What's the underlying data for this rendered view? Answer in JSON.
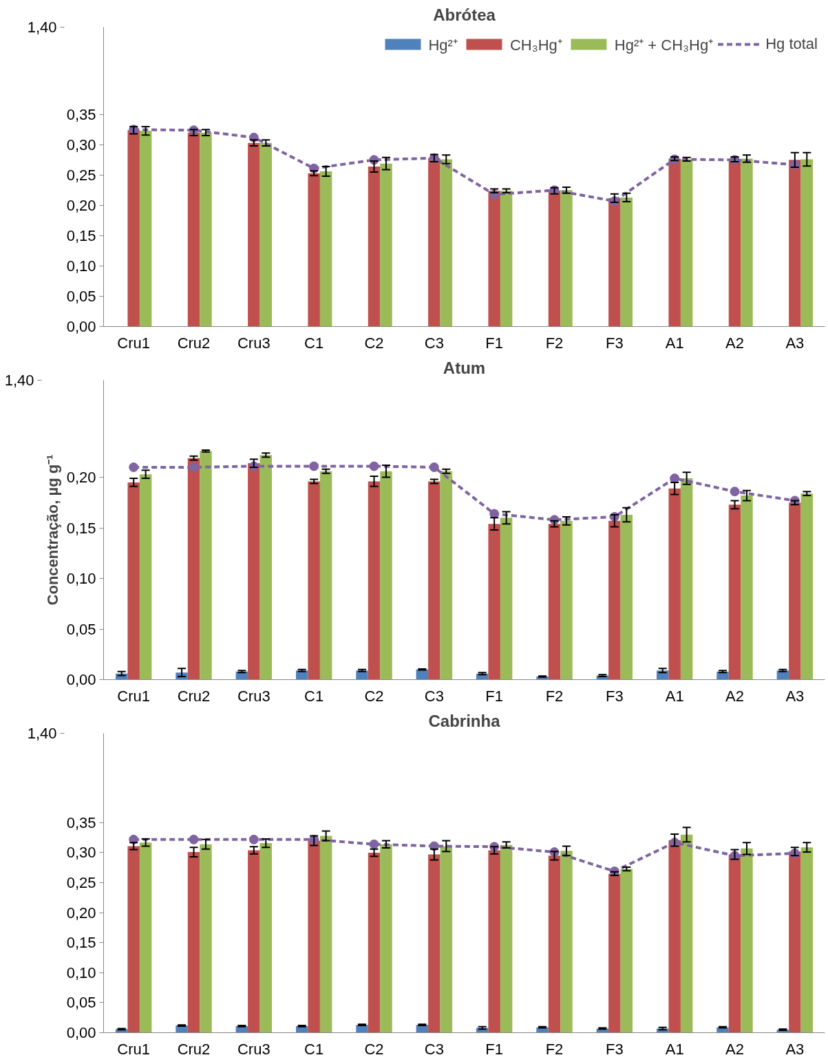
{
  "chart_data": [
    {
      "type": "bar",
      "title": "Abrótea",
      "categories": [
        "Cru1",
        "Cru2",
        "Cru3",
        "C1",
        "C2",
        "C3",
        "F1",
        "F2",
        "F3",
        "A1",
        "A2",
        "A3"
      ],
      "ylim": [
        0,
        0.494
      ],
      "yticks": [
        {
          "value": 0,
          "label": "0,00"
        },
        {
          "value": 0.05,
          "label": "0,05"
        },
        {
          "value": 0.1,
          "label": "0,10"
        },
        {
          "value": 0.15,
          "label": "0,15"
        },
        {
          "value": 0.2,
          "label": "0,20"
        },
        {
          "value": 0.25,
          "label": "0,25"
        },
        {
          "value": 0.3,
          "label": "0,30"
        },
        {
          "value": 0.35,
          "label": "0,35"
        }
      ],
      "annotations": [
        "1,40"
      ],
      "legend": "top right",
      "grid": false,
      "marker": "circle",
      "line_style": "dashed",
      "series": [
        {
          "name": "Hg²⁺",
          "color": "#4f81bd",
          "values": [
            0,
            0,
            0,
            0,
            0,
            0,
            0,
            0,
            0,
            0,
            0,
            0
          ]
        },
        {
          "name": "CH₃Hg⁺",
          "color": "#c0504d",
          "values": [
            0.324,
            0.32,
            0.303,
            0.253,
            0.264,
            0.278,
            0.224,
            0.224,
            0.212,
            0.277,
            0.276,
            0.275
          ],
          "errors": [
            0.006,
            0.005,
            0.005,
            0.004,
            0.009,
            0.006,
            0.003,
            0.005,
            0.007,
            0.003,
            0.004,
            0.012
          ]
        },
        {
          "name": "Hg²⁺ + CH₃Hg⁺",
          "color": "#9bbb59",
          "values": [
            0.323,
            0.32,
            0.303,
            0.256,
            0.269,
            0.276,
            0.224,
            0.225,
            0.213,
            0.276,
            0.277,
            0.276
          ],
          "errors": [
            0.007,
            0.005,
            0.005,
            0.008,
            0.01,
            0.007,
            0.003,
            0.005,
            0.007,
            0.003,
            0.006,
            0.011
          ]
        },
        {
          "name": "Hg total",
          "type": "line",
          "color": "#8064a2",
          "values": [
            0.325,
            0.324,
            0.312,
            0.261,
            0.275,
            0.278,
            0.218,
            0.225,
            0.207,
            0.276,
            0.275,
            0.267
          ]
        }
      ]
    },
    {
      "type": "bar",
      "title": "Atum",
      "ylabel": "Concentração, µg g⁻¹",
      "categories": [
        "Cru1",
        "Cru2",
        "Cru3",
        "C1",
        "C2",
        "C3",
        "F1",
        "F2",
        "F3",
        "A1",
        "A2",
        "A3"
      ],
      "ylim": [
        0,
        0.296
      ],
      "yticks": [
        {
          "value": 0,
          "label": "0,00"
        },
        {
          "value": 0.05,
          "label": "0,05"
        },
        {
          "value": 0.1,
          "label": "0,10"
        },
        {
          "value": 0.15,
          "label": "0,15"
        },
        {
          "value": 0.2,
          "label": "0,20"
        }
      ],
      "annotations": [
        "1,40"
      ],
      "legend": false,
      "grid": false,
      "marker": "circle",
      "line_style": "dashed",
      "series": [
        {
          "color": "#4f81bd",
          "values": [
            0.006,
            0.007,
            0.008,
            0.009,
            0.009,
            0.01,
            0.006,
            0.003,
            0.004,
            0.009,
            0.008,
            0.009
          ],
          "errors": [
            0.002,
            0.004,
            0.001,
            0.001,
            0.001,
            0.0005,
            0.001,
            0.0005,
            0.001,
            0.002,
            0.001,
            0.001
          ]
        },
        {
          "color": "#c0504d",
          "values": [
            0.195,
            0.219,
            0.214,
            0.196,
            0.196,
            0.196,
            0.154,
            0.154,
            0.157,
            0.189,
            0.173,
            0.175
          ],
          "errors": [
            0.004,
            0.002,
            0.004,
            0.002,
            0.005,
            0.002,
            0.006,
            0.003,
            0.006,
            0.006,
            0.004,
            0.002
          ]
        },
        {
          "color": "#9bbb59",
          "values": [
            0.203,
            0.226,
            0.222,
            0.206,
            0.206,
            0.206,
            0.16,
            0.157,
            0.163,
            0.199,
            0.182,
            0.184
          ],
          "errors": [
            0.004,
            0.001,
            0.002,
            0.002,
            0.006,
            0.002,
            0.006,
            0.004,
            0.007,
            0.006,
            0.005,
            0.002
          ]
        },
        {
          "type": "line",
          "color": "#8064a2",
          "values": [
            0.21,
            0.21,
            0.211,
            0.211,
            0.211,
            0.21,
            0.164,
            0.158,
            0.161,
            0.199,
            0.186,
            0.177
          ]
        }
      ]
    },
    {
      "type": "bar",
      "title": "Cabrinha",
      "categories": [
        "Cru1",
        "Cru2",
        "Cru3",
        "C1",
        "C2",
        "C3",
        "F1",
        "F2",
        "F3",
        "A1",
        "A2",
        "A3"
      ],
      "ylim": [
        0,
        0.499
      ],
      "yticks": [
        {
          "value": 0,
          "label": "0,00"
        },
        {
          "value": 0.05,
          "label": "0,05"
        },
        {
          "value": 0.1,
          "label": "0,10"
        },
        {
          "value": 0.15,
          "label": "0,15"
        },
        {
          "value": 0.2,
          "label": "0,20"
        },
        {
          "value": 0.25,
          "label": "0,25"
        },
        {
          "value": 0.3,
          "label": "0,30"
        },
        {
          "value": 0.35,
          "label": "0,35"
        }
      ],
      "annotations": [
        "1,40"
      ],
      "legend": false,
      "grid": false,
      "marker": "circle",
      "line_style": "dashed",
      "series": [
        {
          "color": "#4f81bd",
          "values": [
            0.006,
            0.012,
            0.011,
            0.011,
            0.013,
            0.013,
            0.008,
            0.009,
            0.007,
            0.007,
            0.009,
            0.005
          ],
          "errors": [
            0.001,
            0.001,
            0.001,
            0.001,
            0.001,
            0.001,
            0.002,
            0.001,
            0.001,
            0.002,
            0.001,
            0.001
          ]
        },
        {
          "color": "#c0504d",
          "values": [
            0.311,
            0.301,
            0.304,
            0.32,
            0.3,
            0.297,
            0.304,
            0.295,
            0.265,
            0.321,
            0.297,
            0.302
          ],
          "errors": [
            0.006,
            0.008,
            0.006,
            0.008,
            0.006,
            0.009,
            0.006,
            0.007,
            0.003,
            0.01,
            0.008,
            0.007
          ]
        },
        {
          "color": "#9bbb59",
          "values": [
            0.317,
            0.314,
            0.316,
            0.328,
            0.314,
            0.311,
            0.313,
            0.303,
            0.273,
            0.33,
            0.307,
            0.309
          ],
          "errors": [
            0.006,
            0.008,
            0.007,
            0.008,
            0.006,
            0.009,
            0.005,
            0.008,
            0.003,
            0.012,
            0.01,
            0.008
          ]
        },
        {
          "type": "line",
          "color": "#8064a2",
          "values": [
            0.322,
            0.322,
            0.322,
            0.322,
            0.314,
            0.311,
            0.31,
            0.301,
            0.269,
            0.317,
            0.295,
            0.299
          ]
        }
      ]
    }
  ]
}
